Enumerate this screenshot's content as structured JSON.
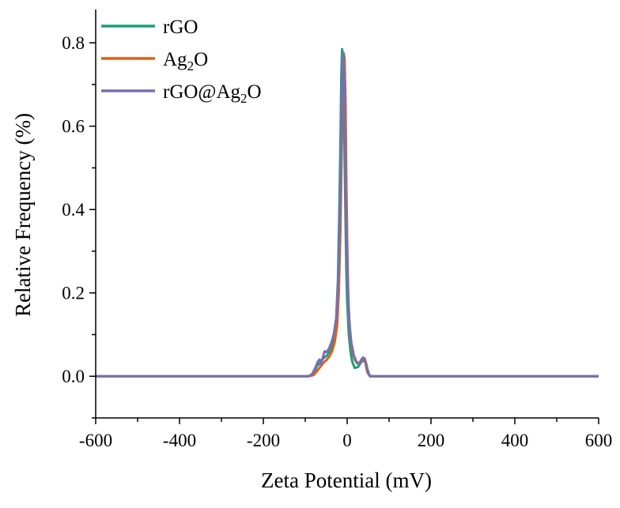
{
  "chart_data": {
    "type": "line",
    "title": "",
    "xlabel": "Zeta Potential (mV)",
    "ylabel": "Relative Frequency (%)",
    "xlim": [
      -600,
      600
    ],
    "ylim": [
      -0.1,
      0.88
    ],
    "xticks": [
      -600,
      -400,
      -200,
      0,
      200,
      400,
      600
    ],
    "xtick_labels": [
      "-600",
      "-400",
      "-200",
      "0",
      "200",
      "400",
      "600"
    ],
    "yticks": [
      0.0,
      0.2,
      0.4,
      0.6,
      0.8
    ],
    "ytick_labels": [
      "0.0",
      "0.2",
      "0.4",
      "0.6",
      "0.8"
    ],
    "grid": false,
    "legend_position": "top-left",
    "series": [
      {
        "name": "rGO",
        "label_main": "rGO",
        "label_sub": "",
        "label_tail": "",
        "color": "#1a9e77",
        "x": [
          -600,
          -95,
          -85,
          -78,
          -72,
          -66,
          -60,
          -54,
          -48,
          -42,
          -36,
          -30,
          -26,
          -22,
          -19,
          -16,
          -14,
          -12,
          -10,
          -8,
          -6,
          -4,
          -2,
          0,
          4,
          8,
          12,
          18,
          26,
          32,
          38,
          42,
          46,
          52,
          56,
          600
        ],
        "y": [
          0,
          0,
          0.002,
          0.01,
          0.025,
          0.03,
          0.04,
          0.045,
          0.05,
          0.06,
          0.075,
          0.1,
          0.14,
          0.23,
          0.38,
          0.56,
          0.72,
          0.785,
          0.77,
          0.69,
          0.52,
          0.38,
          0.26,
          0.18,
          0.1,
          0.06,
          0.035,
          0.02,
          0.022,
          0.032,
          0.038,
          0.036,
          0.025,
          0.005,
          0,
          0
        ]
      },
      {
        "name": "Ag2O",
        "label_main": "Ag",
        "label_sub": "2",
        "label_tail": "O",
        "color": "#e0601a",
        "x": [
          -600,
          -90,
          -80,
          -72,
          -66,
          -60,
          -54,
          -48,
          -42,
          -36,
          -30,
          -24,
          -20,
          -16,
          -13,
          -10,
          -8,
          -6,
          -4,
          -2,
          0,
          2,
          4,
          8,
          12,
          18,
          24,
          30,
          36,
          40,
          44,
          48,
          54,
          600
        ],
        "y": [
          0,
          0,
          0.003,
          0.012,
          0.02,
          0.028,
          0.035,
          0.04,
          0.048,
          0.06,
          0.08,
          0.12,
          0.2,
          0.35,
          0.54,
          0.72,
          0.775,
          0.76,
          0.66,
          0.48,
          0.33,
          0.22,
          0.15,
          0.09,
          0.06,
          0.04,
          0.03,
          0.032,
          0.04,
          0.042,
          0.03,
          0.01,
          0,
          0
        ]
      },
      {
        "name": "rGO@Ag2O",
        "label_main": "rGO@Ag",
        "label_sub": "2",
        "label_tail": "O",
        "color": "#7570b3",
        "x": [
          -600,
          -92,
          -84,
          -76,
          -70,
          -66,
          -62,
          -58,
          -54,
          -50,
          -44,
          -38,
          -32,
          -26,
          -21,
          -17,
          -14,
          -11,
          -9,
          -7,
          -5,
          -3,
          -1,
          2,
          6,
          10,
          16,
          22,
          28,
          34,
          38,
          42,
          46,
          50,
          55,
          600
        ],
        "y": [
          0,
          0,
          0.005,
          0.02,
          0.035,
          0.04,
          0.03,
          0.045,
          0.06,
          0.058,
          0.065,
          0.08,
          0.1,
          0.14,
          0.24,
          0.4,
          0.58,
          0.74,
          0.775,
          0.72,
          0.58,
          0.42,
          0.3,
          0.2,
          0.12,
          0.08,
          0.05,
          0.035,
          0.03,
          0.04,
          0.045,
          0.042,
          0.028,
          0.008,
          0,
          0
        ]
      }
    ]
  }
}
